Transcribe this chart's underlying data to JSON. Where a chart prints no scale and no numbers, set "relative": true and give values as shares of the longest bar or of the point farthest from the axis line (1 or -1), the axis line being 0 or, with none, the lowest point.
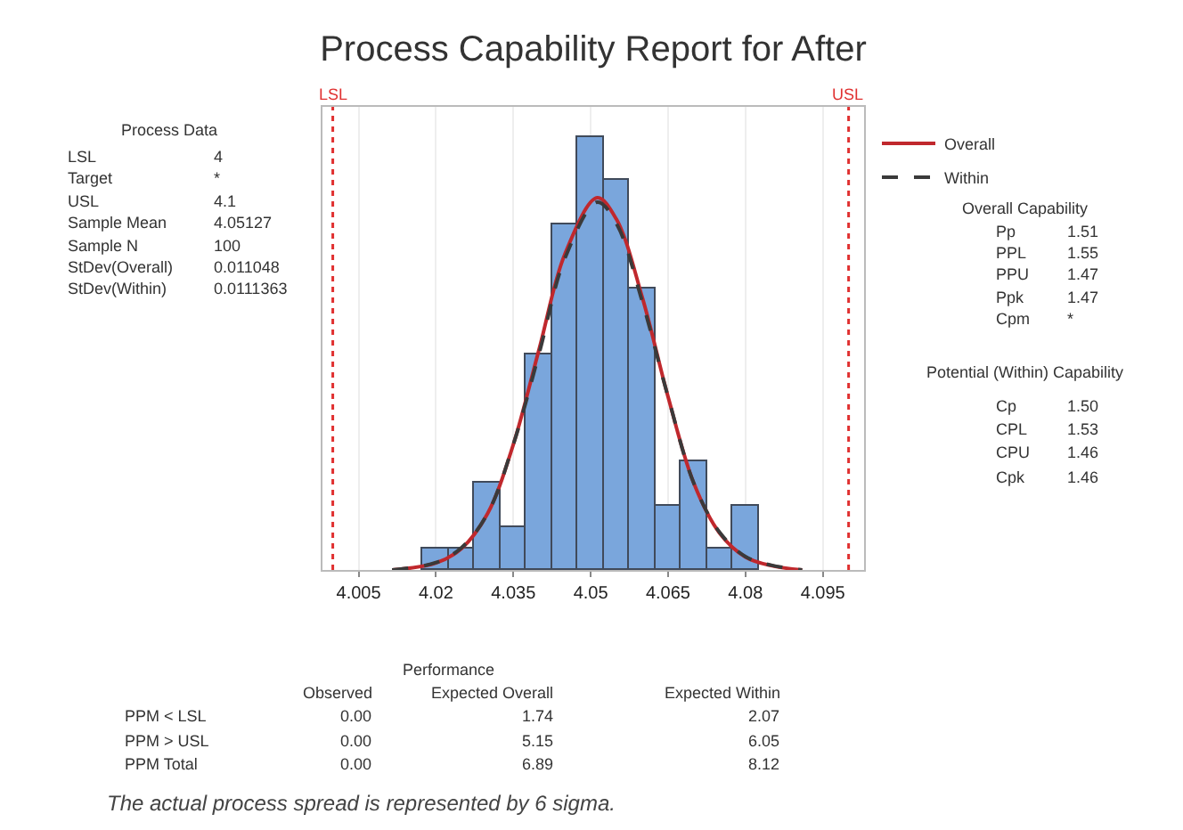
{
  "chart_data": {
    "type": "histogram",
    "title": "Process Capability Report for After",
    "relative": true,
    "bins": [
      4.0175,
      4.0225,
      4.0275,
      4.0325,
      4.0375,
      4.0425,
      4.0475,
      4.0525,
      4.0575,
      4.0625,
      4.0675,
      4.0725,
      4.0775,
      4.0825
    ],
    "values": [
      0.05,
      0.05,
      0.2,
      0.1,
      0.5,
      0.8,
      1,
      0.9,
      0.65,
      0.15,
      0.25,
      0.05,
      0.15
    ],
    "color": "#7aa6dc",
    "series": [
      {
        "name": "Overall",
        "type": "line",
        "color": "#c0282d",
        "line_style": "solid",
        "x": [
          4.0115,
          4.02,
          4.025,
          4.03,
          4.035,
          4.04,
          4.045,
          4.05127,
          4.055,
          4.06,
          4.065,
          4.07,
          4.075,
          4.08,
          4.085,
          4.091
        ],
        "values": [
          0.0,
          0.016,
          0.05,
          0.13,
          0.29,
          0.51,
          0.73,
          0.86,
          0.81,
          0.63,
          0.4,
          0.2,
          0.085,
          0.03,
          0.01,
          0.0
        ]
      },
      {
        "name": "Within",
        "type": "line",
        "color": "#3a3a3a",
        "line_style": "dashed",
        "x": [
          4.0115,
          4.02,
          4.025,
          4.03,
          4.035,
          4.04,
          4.045,
          4.05127,
          4.055,
          4.06,
          4.065,
          4.07,
          4.075,
          4.08,
          4.085,
          4.091
        ],
        "values": [
          0.0,
          0.017,
          0.052,
          0.13,
          0.29,
          0.5,
          0.72,
          0.85,
          0.8,
          0.62,
          0.4,
          0.2,
          0.087,
          0.031,
          0.011,
          0.0
        ]
      }
    ],
    "xlim": [
      3.998,
      4.103
    ],
    "xticks": [
      4.005,
      4.02,
      4.035,
      4.05,
      4.065,
      4.08,
      4.095
    ],
    "ref_lines": [
      {
        "axis": "x",
        "value": 4,
        "label": "LSL",
        "color": "#e03030",
        "line_style": "dotted"
      },
      {
        "axis": "x",
        "value": 4.1,
        "label": "USL",
        "color": "#e03030",
        "line_style": "dotted"
      }
    ],
    "grid": "x",
    "legend": "right",
    "annotations": [
      "Process Data\nLSL\t4\nTarget\t*\nUSL\t4.1\nSample Mean\t4.05127\nSample N\t100\nStDev(Overall)\t0.011048\nStDev(Within)\t0.0111363",
      "Overall Capability\nPp\t1.51\nPPL\t1.55\nPPU\t1.47\nPpk\t1.47\nCpm\t*",
      "Potential (Within) Capability\nCp\t1.50\nCPL\t1.53\nCPU\t1.46\nCpk\t1.46",
      "Performance\n\tObserved\tExpected Overall\tExpected Within\nPPM < LSL\t0.00\t1.74\t2.07\nPPM > USL\t0.00\t5.15\t6.05\nPPM Total\t0.00\t6.89\t8.12",
      "The actual process spread is represented by 6 sigma."
    ]
  }
}
